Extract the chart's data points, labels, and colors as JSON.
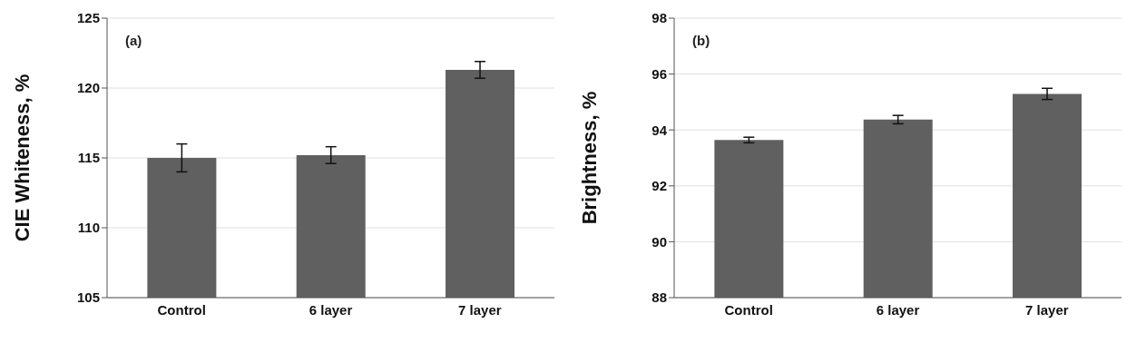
{
  "chart_data": [
    {
      "type": "bar",
      "categories": [
        "Control",
        "6 layer",
        "7 layer"
      ],
      "values": [
        115.0,
        115.2,
        121.3
      ],
      "errors": [
        1.0,
        0.6,
        0.6
      ],
      "color": "#606060",
      "ylabel": "CIE Whiteness, %",
      "ylim": [
        105,
        125
      ],
      "yticks": [
        105,
        110,
        115,
        120,
        125
      ],
      "grid": "y",
      "annotations": [
        "(a)"
      ]
    },
    {
      "type": "bar",
      "categories": [
        "Control",
        "6 layer",
        "7 layer"
      ],
      "values": [
        93.64,
        94.37,
        95.29
      ],
      "errors": [
        0.1,
        0.15,
        0.2
      ],
      "color": "#606060",
      "ylabel": "Brightness, %",
      "ylim": [
        88,
        98
      ],
      "yticks": [
        88,
        90,
        92,
        94,
        96,
        98
      ],
      "grid": "y",
      "annotations": [
        "(b)"
      ]
    }
  ]
}
